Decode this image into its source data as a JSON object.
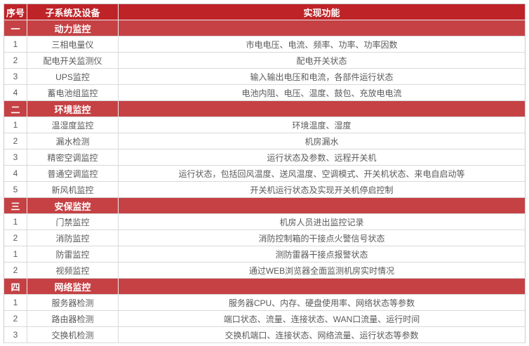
{
  "colors": {
    "header_bg": "#be2328",
    "section_bg": "#c54144",
    "header_text": "#ffffff",
    "body_text": "#5a5a5a",
    "row_border": "#d9d9d9"
  },
  "table": {
    "columns": [
      {
        "label": "序号"
      },
      {
        "label": "子系统及设备"
      },
      {
        "label": "实现功能"
      }
    ],
    "sections": [
      {
        "index": "一",
        "title": "动力监控",
        "rows": [
          {
            "index": "1",
            "subsystem": "三相电量仪",
            "function": "市电电压、电流、频率、功率、功率因数"
          },
          {
            "index": "2",
            "subsystem": "配电开关监测仪",
            "function": "配电开关状态"
          },
          {
            "index": "3",
            "subsystem": "UPS监控",
            "function": "输入输出电压和电流，各部件运行状态"
          },
          {
            "index": "4",
            "subsystem": "蓄电池组监控",
            "function": "电池内阻、电压、温度、鼓包、充放电电流"
          }
        ]
      },
      {
        "index": "二",
        "title": "环境监控",
        "rows": [
          {
            "index": "1",
            "subsystem": "温湿度监控",
            "function": "环境温度、湿度"
          },
          {
            "index": "2",
            "subsystem": "漏水检测",
            "function": "机房漏水"
          },
          {
            "index": "3",
            "subsystem": "精密空调监控",
            "function": "运行状态及参数、远程开关机"
          },
          {
            "index": "4",
            "subsystem": "普通空调监控",
            "function": "运行状态，包括回风温度、送风温度、空调模式、开关机状态、来电自启动等"
          },
          {
            "index": "5",
            "subsystem": "新风机监控",
            "function": "开关机运行状态及实现开关机停启控制"
          }
        ]
      },
      {
        "index": "三",
        "title": "安保监控",
        "rows": [
          {
            "index": "1",
            "subsystem": "门禁监控",
            "function": "机房人员进出监控记录"
          },
          {
            "index": "2",
            "subsystem": "消防监控",
            "function": "消防控制箱的干接点火警信号状态"
          },
          {
            "index": "1",
            "subsystem": "防雷监控",
            "function": "测防雷器干接点报警状态"
          },
          {
            "index": "2",
            "subsystem": "视频监控",
            "function": "通过WEB浏览器全面监测机房实时情况"
          }
        ]
      },
      {
        "index": "四",
        "title": "网络监控",
        "rows": [
          {
            "index": "1",
            "subsystem": "服务器检测",
            "function": "服务器CPU、内存、硬盘使用率、网络状态等参数"
          },
          {
            "index": "2",
            "subsystem": "路由器检测",
            "function": "端口状态、流量、连接状态、WAN口流量、运行时间"
          },
          {
            "index": "3",
            "subsystem": "交换机检测",
            "function": "交换机端口、连接状态、网络流量、运行状态等参数"
          }
        ]
      }
    ]
  }
}
